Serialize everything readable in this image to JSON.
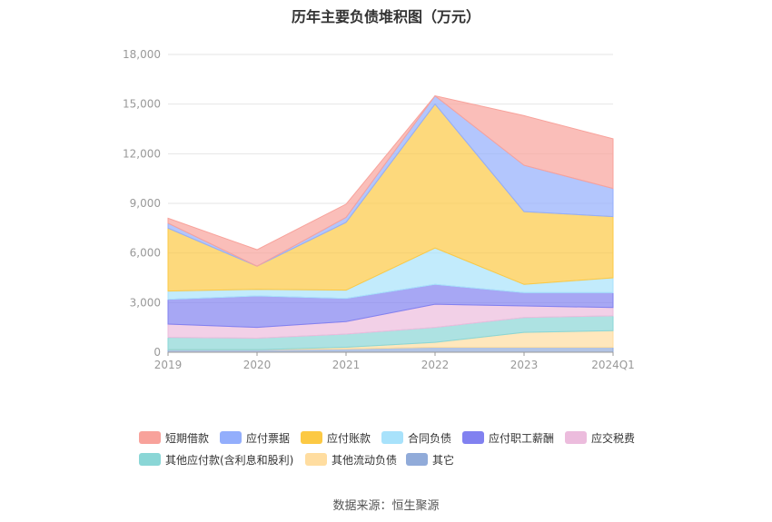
{
  "title": "历年主要负债堆积图（万元）",
  "source": "数据来源：恒生聚源",
  "chart_data": {
    "type": "area",
    "stacked": true,
    "categories": [
      "2019",
      "2020",
      "2021",
      "2022",
      "2023",
      "2024Q1"
    ],
    "ylim": [
      0,
      18000
    ],
    "yticks": [
      0,
      3000,
      6000,
      9000,
      12000,
      15000,
      18000
    ],
    "ytick_labels": [
      "0",
      "3,000",
      "6,000",
      "9,000",
      "12,000",
      "15,000",
      "18,000"
    ],
    "grid": true,
    "legend_position": "bottom",
    "series": [
      {
        "name": "其它",
        "color": "#91abd9",
        "values": [
          150,
          150,
          200,
          300,
          300,
          300
        ]
      },
      {
        "name": "其他流动负债",
        "color": "#ffdda0",
        "values": [
          0,
          0,
          100,
          300,
          900,
          1000
        ]
      },
      {
        "name": "其他应付款(含利息和股利)",
        "color": "#8ad6d6",
        "values": [
          750,
          700,
          800,
          900,
          900,
          900
        ]
      },
      {
        "name": "应交税费",
        "color": "#ecbcdd",
        "values": [
          800,
          650,
          750,
          1400,
          700,
          500
        ]
      },
      {
        "name": "应付职工薪酬",
        "color": "#8181f0",
        "values": [
          1500,
          1900,
          1400,
          1200,
          800,
          900
        ]
      },
      {
        "name": "合同负债",
        "color": "#a8e2fb",
        "values": [
          500,
          400,
          500,
          2200,
          500,
          900
        ]
      },
      {
        "name": "应付账款",
        "color": "#fcc944",
        "values": [
          3800,
          1400,
          4100,
          8700,
          4400,
          3700
        ]
      },
      {
        "name": "应付票据",
        "color": "#93aefc",
        "values": [
          300,
          0,
          300,
          500,
          2800,
          1700
        ]
      },
      {
        "name": "短期借款",
        "color": "#f8a29b",
        "values": [
          300,
          1000,
          800,
          0,
          3000,
          3000
        ]
      }
    ]
  },
  "legend": [
    {
      "name": "短期借款",
      "color": "#f8a29b"
    },
    {
      "name": "应付票据",
      "color": "#93aefc"
    },
    {
      "name": "应付账款",
      "color": "#fcc944"
    },
    {
      "name": "合同负债",
      "color": "#a8e2fb"
    },
    {
      "name": "应付职工薪酬",
      "color": "#8181f0"
    },
    {
      "name": "应交税费",
      "color": "#ecbcdd"
    },
    {
      "name": "其他应付款(含利息和股利)",
      "color": "#8ad6d6"
    },
    {
      "name": "其他流动负债",
      "color": "#ffdda0"
    },
    {
      "name": "其它",
      "color": "#91abd9"
    }
  ]
}
